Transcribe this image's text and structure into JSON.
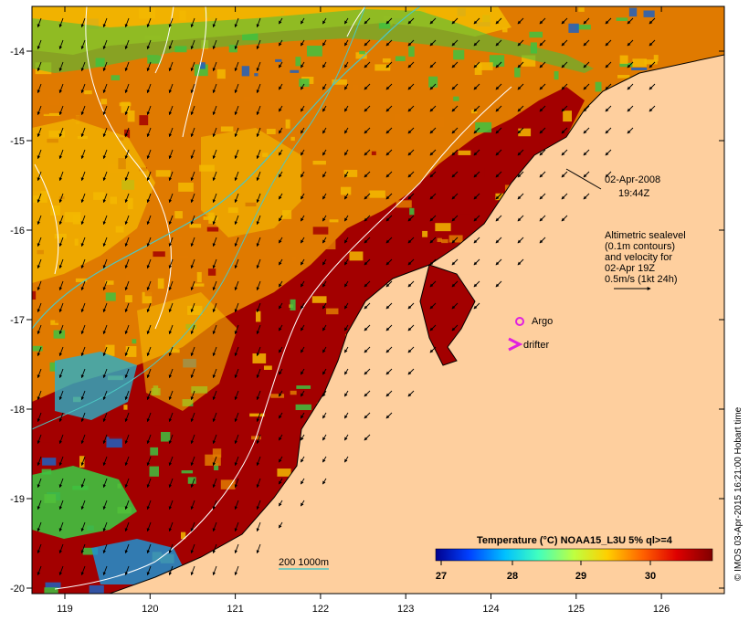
{
  "map": {
    "colors": {
      "land": "#fecf9e",
      "sea_warm": "#a30000",
      "sea_mid": "#e07a00",
      "sea_cool": "#f3b800",
      "sea_green": "#3fc23f",
      "sea_blue": "#1f60c0",
      "contour": "#ffffff",
      "isobath": "#4cc7c3",
      "argo": "#e020e0",
      "drifter": "#e020e0",
      "arrow": "#000000"
    },
    "axes": {
      "lon_ticks": [
        "119",
        "120",
        "121",
        "122",
        "123",
        "124",
        "125",
        "126"
      ],
      "lat_ticks": [
        "-14",
        "-15",
        "-16",
        "-17",
        "-18",
        "-19",
        "-20"
      ]
    },
    "timestamp": {
      "date": "02-Apr-2008",
      "time": "19:44Z"
    },
    "info": {
      "line1": "Altimetric sealevel",
      "line2": "(0.1m contours)",
      "line3": "and velocity for",
      "line4": "02-Apr 19Z",
      "line5": "0.5m/s (1kt 24h)"
    },
    "legend": {
      "argo": "Argo",
      "drifter": "drifter",
      "isobath": "200  1000m"
    },
    "colorbar": {
      "title": "Temperature (°C) NOAA15_L3U 5% ql>=4",
      "ticks": [
        "27",
        "28",
        "29",
        "30"
      ]
    },
    "credit": "© IMOS 03-Apr-2015 16:21:00 Hobart time"
  }
}
